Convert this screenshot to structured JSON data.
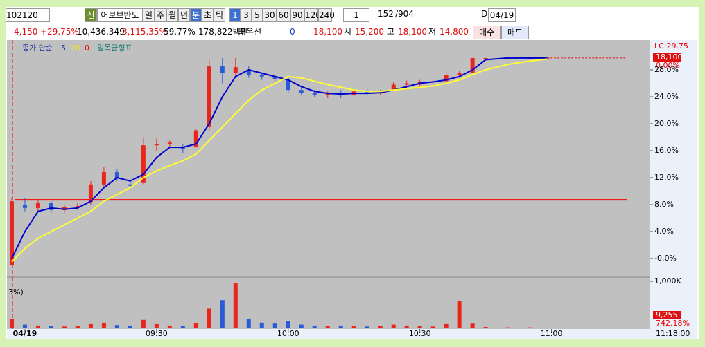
{
  "toolbar": {
    "code": "102120",
    "badge": "신",
    "name": "어보브반도",
    "periods": [
      "일",
      "주",
      "월",
      "년",
      "분",
      "초",
      "틱"
    ],
    "intervals": [
      "1",
      "3",
      "5",
      "30",
      "60",
      "90",
      "120",
      "240"
    ],
    "count": "1",
    "shown": "152",
    "total": "/904",
    "d": "D",
    "date": "04/19"
  },
  "info": {
    "price": "4,150",
    "change": "+29.75%",
    "volume": "10,436,349",
    "volume_rate": "3,115.35%",
    "ratio": "59.77%",
    "amount": "178,822백만",
    "best": "최우선",
    "best_value": "0",
    "best_price": "18,100",
    "open_label": "시",
    "open": "15,200",
    "high_label": "고",
    "high": "18,100",
    "low_label": "저",
    "low": "14,800",
    "buy": "매수",
    "sell": "매도"
  },
  "chart_data": {
    "type": "candlestick",
    "legend": [
      "종가 단순",
      "5",
      "20",
      "0",
      "일목균형표"
    ],
    "x": [
      -3,
      0,
      3,
      6,
      9,
      12,
      15,
      18,
      21,
      24,
      27,
      30,
      33,
      36,
      39,
      42,
      45,
      48,
      51,
      54,
      57,
      60,
      63,
      66,
      69,
      72,
      75,
      78,
      81,
      84,
      87,
      90,
      93,
      96,
      99,
      102,
      105,
      110,
      115,
      119
    ],
    "open": [
      -1,
      8,
      7.5,
      8.2,
      7.2,
      7.6,
      8.4,
      11,
      12.8,
      11,
      11.2,
      16.8,
      17,
      16.5,
      16.5,
      19.5,
      28.5,
      27.5,
      28,
      27.2,
      27,
      26.5,
      25,
      24.6,
      24.3,
      24.5,
      24.2,
      24.8,
      24.5,
      24.9,
      25.8,
      25.8,
      26.2,
      26.3,
      27.2,
      27.5,
      29.75,
      29.75,
      29.75,
      29.75
    ],
    "high": [
      9,
      9,
      8.8,
      8.5,
      8,
      8.2,
      11.5,
      13.6,
      13.2,
      11.8,
      18,
      17.8,
      17.5,
      17,
      19.2,
      29.5,
      29.75,
      29.75,
      28.5,
      27.6,
      27.3,
      26.8,
      25.5,
      25,
      24.8,
      25,
      25,
      25.2,
      25,
      26.2,
      26.4,
      26.5,
      26.5,
      27.8,
      27.8,
      29.75,
      29.75,
      29.75,
      29.75,
      29.75
    ],
    "low": [
      -1,
      7,
      7,
      6.8,
      6.8,
      7.2,
      8,
      10.5,
      11.5,
      10.2,
      11,
      16,
      16.5,
      15.6,
      16.5,
      19,
      26,
      27,
      26.8,
      26.5,
      26.2,
      24.5,
      24.2,
      24,
      23.8,
      23.8,
      24,
      24.2,
      24.2,
      24.8,
      25.3,
      25.5,
      25.8,
      26,
      26.8,
      27.5,
      29.75,
      29.75,
      29.75,
      29.75
    ],
    "close": [
      8.5,
      7.5,
      8.2,
      7.2,
      7.6,
      7.8,
      11,
      12.8,
      12,
      10.8,
      16.8,
      17,
      17.2,
      16.3,
      19,
      28.5,
      27.5,
      28.4,
      27.2,
      27,
      26.6,
      25,
      24.6,
      24.3,
      24.5,
      24.2,
      24.8,
      24.5,
      24.9,
      25.8,
      26,
      26.2,
      26.3,
      27.2,
      27.5,
      29.75,
      29.75,
      29.75,
      29.75,
      29.75
    ],
    "series": [
      {
        "name": "5",
        "color": "#0000cc",
        "values": [
          0,
          4,
          7,
          7.5,
          7.3,
          7.5,
          8.5,
          10.5,
          12,
          11.5,
          12.5,
          15,
          16.5,
          16.5,
          17,
          20,
          24,
          27,
          28,
          27.5,
          27,
          26.5,
          25.5,
          24.8,
          24.5,
          24.4,
          24.5,
          24.5,
          24.6,
          25,
          25.5,
          26,
          26.2,
          26.5,
          27,
          28,
          29.5,
          29.75,
          29.75,
          29.75
        ]
      },
      {
        "name": "20",
        "color": "#ffff33",
        "values": [
          -0.5,
          1.5,
          3,
          4,
          5,
          6,
          7,
          8.5,
          9.5,
          10.5,
          12,
          13,
          13.8,
          14.5,
          15.5,
          17.5,
          19.5,
          21.5,
          23.5,
          25,
          26,
          27,
          26.8,
          26.3,
          25.8,
          25.4,
          25,
          24.8,
          24.8,
          25,
          25.2,
          25.4,
          25.6,
          26,
          26.5,
          27.3,
          28,
          28.8,
          29.3,
          29.6
        ]
      }
    ],
    "reference_line": 8.7,
    "up_color": "#e8261c",
    "down_color": "#2a5bd7",
    "xlim": [
      -4.1,
      142.5
    ],
    "xticks": [
      {
        "value": 0,
        "label": "04/19"
      },
      {
        "value": 30,
        "label": "09:30"
      },
      {
        "value": 60,
        "label": "10:00"
      },
      {
        "value": 90,
        "label": "10:30"
      },
      {
        "value": 120,
        "label": "11:00"
      }
    ],
    "end_time": "11:18:00",
    "ylim": [
      -2.67,
      32
    ],
    "yticks": [
      {
        "value": 28,
        "label": "28.0%"
      },
      {
        "value": 24,
        "label": "24.0%"
      },
      {
        "value": 20,
        "label": "20.0%"
      },
      {
        "value": 16,
        "label": "16.0%"
      },
      {
        "value": 12,
        "label": "12.0%"
      },
      {
        "value": 8,
        "label": "8.0%"
      },
      {
        "value": 4,
        "label": "4.0%"
      },
      {
        "value": 0,
        "label": "-0.0%"
      }
    ],
    "limit_label": "LC:29.75",
    "current_label": "18,100",
    "current_pct": "0.00%",
    "volume": {
      "label": "3%)",
      "values": [
        200,
        80,
        60,
        50,
        40,
        50,
        90,
        120,
        70,
        60,
        180,
        90,
        60,
        50,
        110,
        420,
        600,
        960,
        200,
        120,
        100,
        150,
        80,
        60,
        50,
        60,
        50,
        40,
        50,
        80,
        60,
        50,
        40,
        90,
        580,
        100,
        30,
        20,
        20,
        15
      ],
      "ylim": [
        0,
        1060
      ],
      "yticks": [
        {
          "value": 1000,
          "label": "1,000K"
        }
      ],
      "current_label": "9,255",
      "current_pct": "742.18%"
    }
  }
}
